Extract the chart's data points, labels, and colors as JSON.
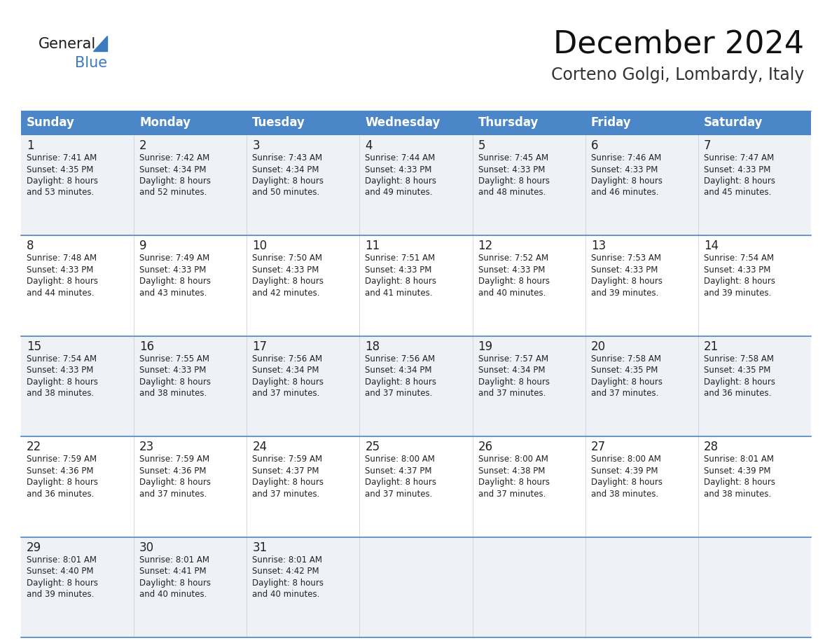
{
  "title": "December 2024",
  "subtitle": "Corteno Golgi, Lombardy, Italy",
  "header_color": "#4a86c8",
  "header_text_color": "#ffffff",
  "days_of_week": [
    "Sunday",
    "Monday",
    "Tuesday",
    "Wednesday",
    "Thursday",
    "Friday",
    "Saturday"
  ],
  "bg_color": "#ffffff",
  "row_bg_even": "#eef2f7",
  "row_bg_odd": "#ffffff",
  "separator_color": "#4a86c8",
  "grid_color": "#c8d4e0",
  "cell_data": [
    [
      "1",
      "2",
      "3",
      "4",
      "5",
      "6",
      "7"
    ],
    [
      "8",
      "9",
      "10",
      "11",
      "12",
      "13",
      "14"
    ],
    [
      "15",
      "16",
      "17",
      "18",
      "19",
      "20",
      "21"
    ],
    [
      "22",
      "23",
      "24",
      "25",
      "26",
      "27",
      "28"
    ],
    [
      "29",
      "30",
      "31",
      "",
      "",
      "",
      ""
    ]
  ],
  "cell_info": [
    [
      "Sunrise: 7:41 AM\nSunset: 4:35 PM\nDaylight: 8 hours\nand 53 minutes.",
      "Sunrise: 7:42 AM\nSunset: 4:34 PM\nDaylight: 8 hours\nand 52 minutes.",
      "Sunrise: 7:43 AM\nSunset: 4:34 PM\nDaylight: 8 hours\nand 50 minutes.",
      "Sunrise: 7:44 AM\nSunset: 4:33 PM\nDaylight: 8 hours\nand 49 minutes.",
      "Sunrise: 7:45 AM\nSunset: 4:33 PM\nDaylight: 8 hours\nand 48 minutes.",
      "Sunrise: 7:46 AM\nSunset: 4:33 PM\nDaylight: 8 hours\nand 46 minutes.",
      "Sunrise: 7:47 AM\nSunset: 4:33 PM\nDaylight: 8 hours\nand 45 minutes."
    ],
    [
      "Sunrise: 7:48 AM\nSunset: 4:33 PM\nDaylight: 8 hours\nand 44 minutes.",
      "Sunrise: 7:49 AM\nSunset: 4:33 PM\nDaylight: 8 hours\nand 43 minutes.",
      "Sunrise: 7:50 AM\nSunset: 4:33 PM\nDaylight: 8 hours\nand 42 minutes.",
      "Sunrise: 7:51 AM\nSunset: 4:33 PM\nDaylight: 8 hours\nand 41 minutes.",
      "Sunrise: 7:52 AM\nSunset: 4:33 PM\nDaylight: 8 hours\nand 40 minutes.",
      "Sunrise: 7:53 AM\nSunset: 4:33 PM\nDaylight: 8 hours\nand 39 minutes.",
      "Sunrise: 7:54 AM\nSunset: 4:33 PM\nDaylight: 8 hours\nand 39 minutes."
    ],
    [
      "Sunrise: 7:54 AM\nSunset: 4:33 PM\nDaylight: 8 hours\nand 38 minutes.",
      "Sunrise: 7:55 AM\nSunset: 4:33 PM\nDaylight: 8 hours\nand 38 minutes.",
      "Sunrise: 7:56 AM\nSunset: 4:34 PM\nDaylight: 8 hours\nand 37 minutes.",
      "Sunrise: 7:56 AM\nSunset: 4:34 PM\nDaylight: 8 hours\nand 37 minutes.",
      "Sunrise: 7:57 AM\nSunset: 4:34 PM\nDaylight: 8 hours\nand 37 minutes.",
      "Sunrise: 7:58 AM\nSunset: 4:35 PM\nDaylight: 8 hours\nand 37 minutes.",
      "Sunrise: 7:58 AM\nSunset: 4:35 PM\nDaylight: 8 hours\nand 36 minutes."
    ],
    [
      "Sunrise: 7:59 AM\nSunset: 4:36 PM\nDaylight: 8 hours\nand 36 minutes.",
      "Sunrise: 7:59 AM\nSunset: 4:36 PM\nDaylight: 8 hours\nand 37 minutes.",
      "Sunrise: 7:59 AM\nSunset: 4:37 PM\nDaylight: 8 hours\nand 37 minutes.",
      "Sunrise: 8:00 AM\nSunset: 4:37 PM\nDaylight: 8 hours\nand 37 minutes.",
      "Sunrise: 8:00 AM\nSunset: 4:38 PM\nDaylight: 8 hours\nand 37 minutes.",
      "Sunrise: 8:00 AM\nSunset: 4:39 PM\nDaylight: 8 hours\nand 38 minutes.",
      "Sunrise: 8:01 AM\nSunset: 4:39 PM\nDaylight: 8 hours\nand 38 minutes."
    ],
    [
      "Sunrise: 8:01 AM\nSunset: 4:40 PM\nDaylight: 8 hours\nand 39 minutes.",
      "Sunrise: 8:01 AM\nSunset: 4:41 PM\nDaylight: 8 hours\nand 40 minutes.",
      "Sunrise: 8:01 AM\nSunset: 4:42 PM\nDaylight: 8 hours\nand 40 minutes.",
      "",
      "",
      "",
      ""
    ]
  ],
  "logo_general_color": "#1a1a1a",
  "logo_blue_color": "#3a7abf",
  "logo_triangle_color": "#3a7abf",
  "title_fontsize": 32,
  "subtitle_fontsize": 17,
  "header_fontsize": 12,
  "cell_day_fontsize": 12,
  "cell_info_fontsize": 8.5
}
